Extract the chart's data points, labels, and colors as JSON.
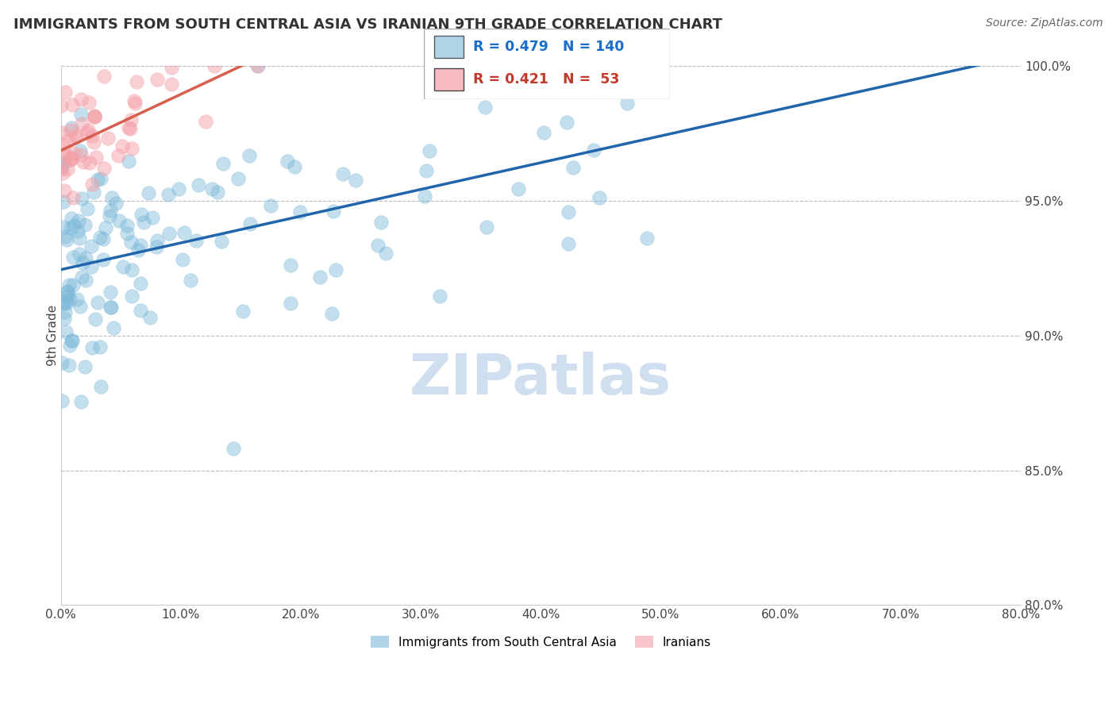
{
  "title": "IMMIGRANTS FROM SOUTH CENTRAL ASIA VS IRANIAN 9TH GRADE CORRELATION CHART",
  "source": "Source: ZipAtlas.com",
  "ylabel": "9th Grade",
  "xlim": [
    0.0,
    80.0
  ],
  "ylim": [
    80.0,
    100.0
  ],
  "xticks": [
    0.0,
    10.0,
    20.0,
    30.0,
    40.0,
    50.0,
    60.0,
    70.0,
    80.0
  ],
  "yticks": [
    80.0,
    85.0,
    90.0,
    95.0,
    100.0
  ],
  "blue_color": "#7ab8d9",
  "pink_color": "#f4a0a8",
  "blue_line_color": "#2166ac",
  "pink_line_color": "#d6604d",
  "R_blue": 0.479,
  "N_blue": 140,
  "R_pink": 0.421,
  "N_pink": 53,
  "blue_seed": 42,
  "pink_seed": 99,
  "watermark": "ZIPatlas",
  "watermark_color": "#d0dff0"
}
